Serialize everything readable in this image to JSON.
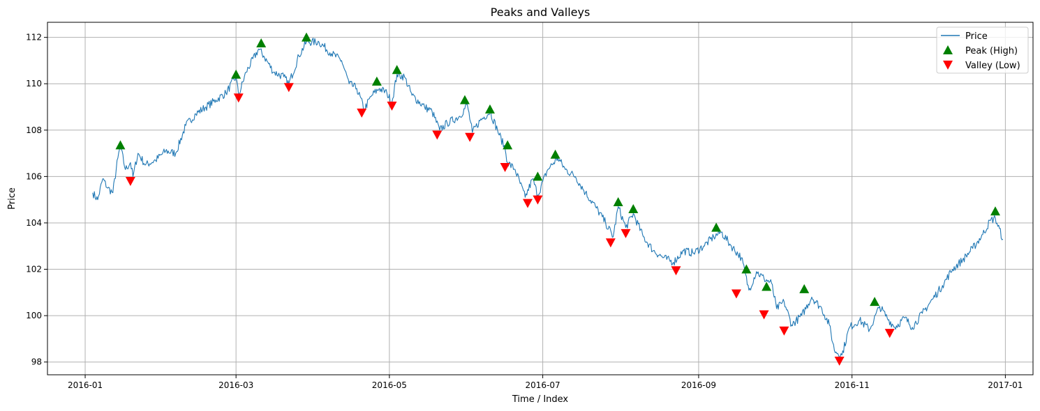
{
  "chart_data": {
    "type": "line",
    "title": "Peaks and Valleys",
    "xlabel": "Time / Index",
    "ylabel": "Price",
    "xlim": [
      "2015-12-17",
      "2017-01-12"
    ],
    "ylim": [
      97.45,
      112.65
    ],
    "x_ticks": [
      "2016-01",
      "2016-03",
      "2016-05",
      "2016-07",
      "2016-09",
      "2016-11",
      "2017-01"
    ],
    "y_ticks": [
      98,
      100,
      102,
      104,
      106,
      108,
      110,
      112
    ],
    "grid": true,
    "legend_position": "top-right",
    "colors": {
      "price": "#1f77b4",
      "peak": "#008000",
      "valley": "#ff0000",
      "grid": "#b0b0b0"
    },
    "series": [
      {
        "name": "Price",
        "kind": "line",
        "points": [
          [
            "2016-01-04",
            105.3
          ],
          [
            "2016-01-06",
            105.0
          ],
          [
            "2016-01-08",
            105.9
          ],
          [
            "2016-01-10",
            105.5
          ],
          [
            "2016-01-12",
            105.3
          ],
          [
            "2016-01-14",
            106.8
          ],
          [
            "2016-01-15",
            107.3
          ],
          [
            "2016-01-17",
            106.3
          ],
          [
            "2016-01-19",
            106.6
          ],
          [
            "2016-01-20",
            106.0
          ],
          [
            "2016-01-22",
            107.0
          ],
          [
            "2016-01-25",
            106.5
          ],
          [
            "2016-01-29",
            106.7
          ],
          [
            "2016-02-02",
            107.1
          ],
          [
            "2016-02-06",
            107.0
          ],
          [
            "2016-02-10",
            108.2
          ],
          [
            "2016-02-14",
            108.7
          ],
          [
            "2016-02-18",
            109.0
          ],
          [
            "2016-02-22",
            109.3
          ],
          [
            "2016-02-26",
            109.6
          ],
          [
            "2016-03-01",
            110.3
          ],
          [
            "2016-03-02",
            109.5
          ],
          [
            "2016-03-05",
            110.5
          ],
          [
            "2016-03-10",
            111.5
          ],
          [
            "2016-03-12",
            111.2
          ],
          [
            "2016-03-16",
            110.5
          ],
          [
            "2016-03-20",
            110.3
          ],
          [
            "2016-03-22",
            110.0
          ],
          [
            "2016-03-26",
            111.2
          ],
          [
            "2016-03-29",
            111.8
          ],
          [
            "2016-04-03",
            111.8
          ],
          [
            "2016-04-08",
            111.3
          ],
          [
            "2016-04-12",
            111.0
          ],
          [
            "2016-04-15",
            110.0
          ],
          [
            "2016-04-18",
            109.8
          ],
          [
            "2016-04-21",
            108.9
          ],
          [
            "2016-04-24",
            109.5
          ],
          [
            "2016-04-27",
            109.8
          ],
          [
            "2016-04-30",
            109.6
          ],
          [
            "2016-05-02",
            109.2
          ],
          [
            "2016-05-04",
            110.4
          ],
          [
            "2016-05-07",
            110.3
          ],
          [
            "2016-05-10",
            109.5
          ],
          [
            "2016-05-15",
            109.0
          ],
          [
            "2016-05-18",
            108.8
          ],
          [
            "2016-05-21",
            108.0
          ],
          [
            "2016-05-24",
            108.3
          ],
          [
            "2016-05-29",
            108.6
          ],
          [
            "2016-06-01",
            109.1
          ],
          [
            "2016-06-03",
            107.9
          ],
          [
            "2016-06-06",
            108.4
          ],
          [
            "2016-06-10",
            108.8
          ],
          [
            "2016-06-13",
            108.0
          ],
          [
            "2016-06-16",
            107.2
          ],
          [
            "2016-06-17",
            106.6
          ],
          [
            "2016-06-20",
            106.3
          ],
          [
            "2016-06-24",
            105.1
          ],
          [
            "2016-06-27",
            105.9
          ],
          [
            "2016-06-29",
            105.2
          ],
          [
            "2016-07-03",
            106.3
          ],
          [
            "2016-07-07",
            106.8
          ],
          [
            "2016-07-10",
            106.3
          ],
          [
            "2016-07-14",
            106.0
          ],
          [
            "2016-07-18",
            105.3
          ],
          [
            "2016-07-22",
            104.7
          ],
          [
            "2016-07-26",
            104.0
          ],
          [
            "2016-07-29",
            103.4
          ],
          [
            "2016-07-31",
            104.7
          ],
          [
            "2016-08-03",
            103.8
          ],
          [
            "2016-08-06",
            104.4
          ],
          [
            "2016-08-10",
            103.4
          ],
          [
            "2016-08-14",
            102.8
          ],
          [
            "2016-08-18",
            102.5
          ],
          [
            "2016-08-22",
            102.3
          ],
          [
            "2016-08-26",
            102.8
          ],
          [
            "2016-08-30",
            102.7
          ],
          [
            "2016-09-03",
            103.0
          ],
          [
            "2016-09-07",
            103.4
          ],
          [
            "2016-09-10",
            103.6
          ],
          [
            "2016-09-14",
            103.0
          ],
          [
            "2016-09-18",
            102.5
          ],
          [
            "2016-09-21",
            101.1
          ],
          [
            "2016-09-24",
            101.9
          ],
          [
            "2016-09-27",
            101.6
          ],
          [
            "2016-09-30",
            101.4
          ],
          [
            "2016-10-02",
            100.3
          ],
          [
            "2016-10-05",
            100.6
          ],
          [
            "2016-10-08",
            99.6
          ],
          [
            "2016-10-12",
            100.0
          ],
          [
            "2016-10-16",
            100.8
          ],
          [
            "2016-10-20",
            100.3
          ],
          [
            "2016-10-23",
            99.6
          ],
          [
            "2016-10-25",
            98.5
          ],
          [
            "2016-10-28",
            98.3
          ],
          [
            "2016-10-31",
            99.5
          ],
          [
            "2016-11-04",
            99.8
          ],
          [
            "2016-11-08",
            99.4
          ],
          [
            "2016-11-12",
            100.4
          ],
          [
            "2016-11-15",
            99.9
          ],
          [
            "2016-11-18",
            99.5
          ],
          [
            "2016-11-22",
            99.9
          ],
          [
            "2016-11-25",
            99.5
          ],
          [
            "2016-11-29",
            100.1
          ],
          [
            "2016-12-03",
            100.7
          ],
          [
            "2016-12-07",
            101.3
          ],
          [
            "2016-12-11",
            102.0
          ],
          [
            "2016-12-15",
            102.4
          ],
          [
            "2016-12-19",
            102.9
          ],
          [
            "2016-12-23",
            103.5
          ],
          [
            "2016-12-26",
            104.1
          ],
          [
            "2016-12-28",
            104.2
          ],
          [
            "2016-12-31",
            103.3
          ]
        ]
      },
      {
        "name": "Peak (High)",
        "kind": "marker-up",
        "points": [
          [
            "2016-01-15",
            107.35
          ],
          [
            "2016-03-01",
            110.4
          ],
          [
            "2016-03-11",
            111.75
          ],
          [
            "2016-03-29",
            112.0
          ],
          [
            "2016-04-26",
            110.1
          ],
          [
            "2016-05-04",
            110.6
          ],
          [
            "2016-05-31",
            109.3
          ],
          [
            "2016-06-10",
            108.9
          ],
          [
            "2016-06-17",
            107.35
          ],
          [
            "2016-06-29",
            106.0
          ],
          [
            "2016-07-06",
            106.95
          ],
          [
            "2016-07-31",
            104.9
          ],
          [
            "2016-08-06",
            104.6
          ],
          [
            "2016-09-08",
            103.8
          ],
          [
            "2016-09-20",
            102.0
          ],
          [
            "2016-09-28",
            101.25
          ],
          [
            "2016-10-13",
            101.15
          ],
          [
            "2016-11-10",
            100.6
          ],
          [
            "2016-12-28",
            104.5
          ]
        ]
      },
      {
        "name": "Valley (Low)",
        "kind": "marker-down",
        "points": [
          [
            "2016-01-19",
            105.8
          ],
          [
            "2016-03-02",
            109.4
          ],
          [
            "2016-03-22",
            109.85
          ],
          [
            "2016-04-20",
            108.75
          ],
          [
            "2016-05-02",
            109.05
          ],
          [
            "2016-05-20",
            107.8
          ],
          [
            "2016-06-02",
            107.7
          ],
          [
            "2016-06-16",
            106.4
          ],
          [
            "2016-06-25",
            104.85
          ],
          [
            "2016-06-29",
            105.0
          ],
          [
            "2016-07-28",
            103.15
          ],
          [
            "2016-08-03",
            103.55
          ],
          [
            "2016-08-23",
            101.95
          ],
          [
            "2016-09-16",
            100.95
          ],
          [
            "2016-09-27",
            100.05
          ],
          [
            "2016-10-05",
            99.35
          ],
          [
            "2016-10-27",
            98.05
          ],
          [
            "2016-11-16",
            99.25
          ]
        ]
      }
    ]
  }
}
